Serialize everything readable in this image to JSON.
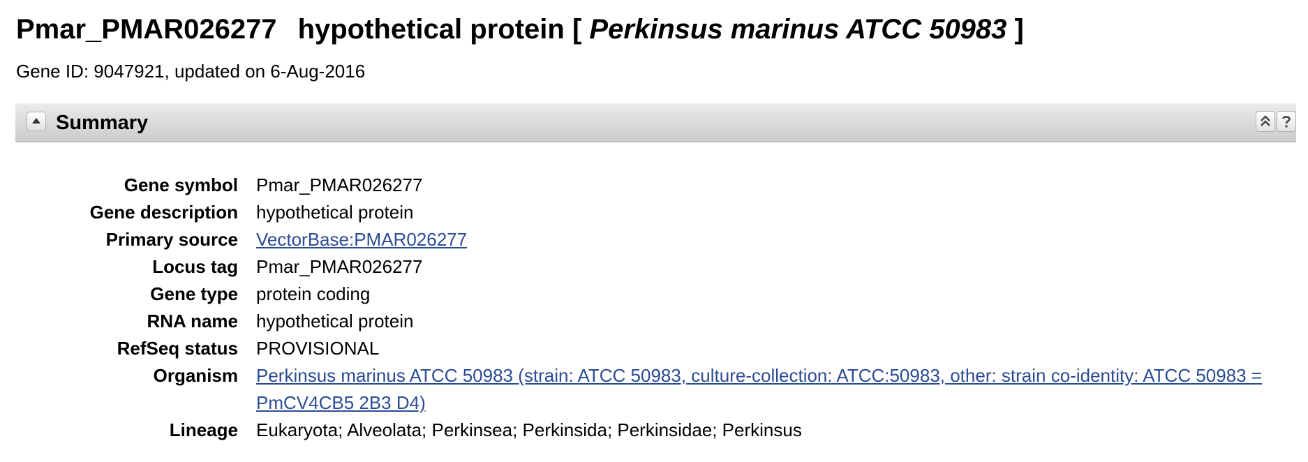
{
  "header": {
    "gene_name": "Pmar_PMAR026277",
    "description": "hypothetical protein",
    "bracket_open": "[",
    "organism": "Perkinsus marinus ATCC 50983",
    "bracket_close": "]",
    "gene_id_line": "Gene ID: 9047921, updated on 6-Aug-2016"
  },
  "summary": {
    "title": "Summary",
    "rows": [
      {
        "label": "Gene symbol",
        "value": "Pmar_PMAR026277"
      },
      {
        "label": "Gene description",
        "value": "hypothetical protein"
      },
      {
        "label": "Primary source",
        "value": "VectorBase:PMAR026277"
      },
      {
        "label": "Locus tag",
        "value": "Pmar_PMAR026277"
      },
      {
        "label": "Gene type",
        "value": "protein coding"
      },
      {
        "label": "RNA name",
        "value": "hypothetical protein"
      },
      {
        "label": "RefSeq status",
        "value": "PROVISIONAL"
      },
      {
        "label": "Organism",
        "value": "Perkinsus marinus ATCC 50983 (strain: ATCC 50983, culture-collection: ATCC:50983, other: strain co-identity: ATCC 50983 = PmCV4CB5 2B3 D4)"
      },
      {
        "label": "Lineage",
        "value": "Eukaryota; Alveolata; Perkinsea; Perkinsida; Perkinsidae; Perkinsus"
      }
    ]
  },
  "icons": {
    "collapse": "triangle-up-icon",
    "go_top": "double-chevron-up-icon",
    "help": "question-mark-icon"
  },
  "colors": {
    "link": "#2b4b94",
    "header_bar": "#d9d9d9"
  }
}
